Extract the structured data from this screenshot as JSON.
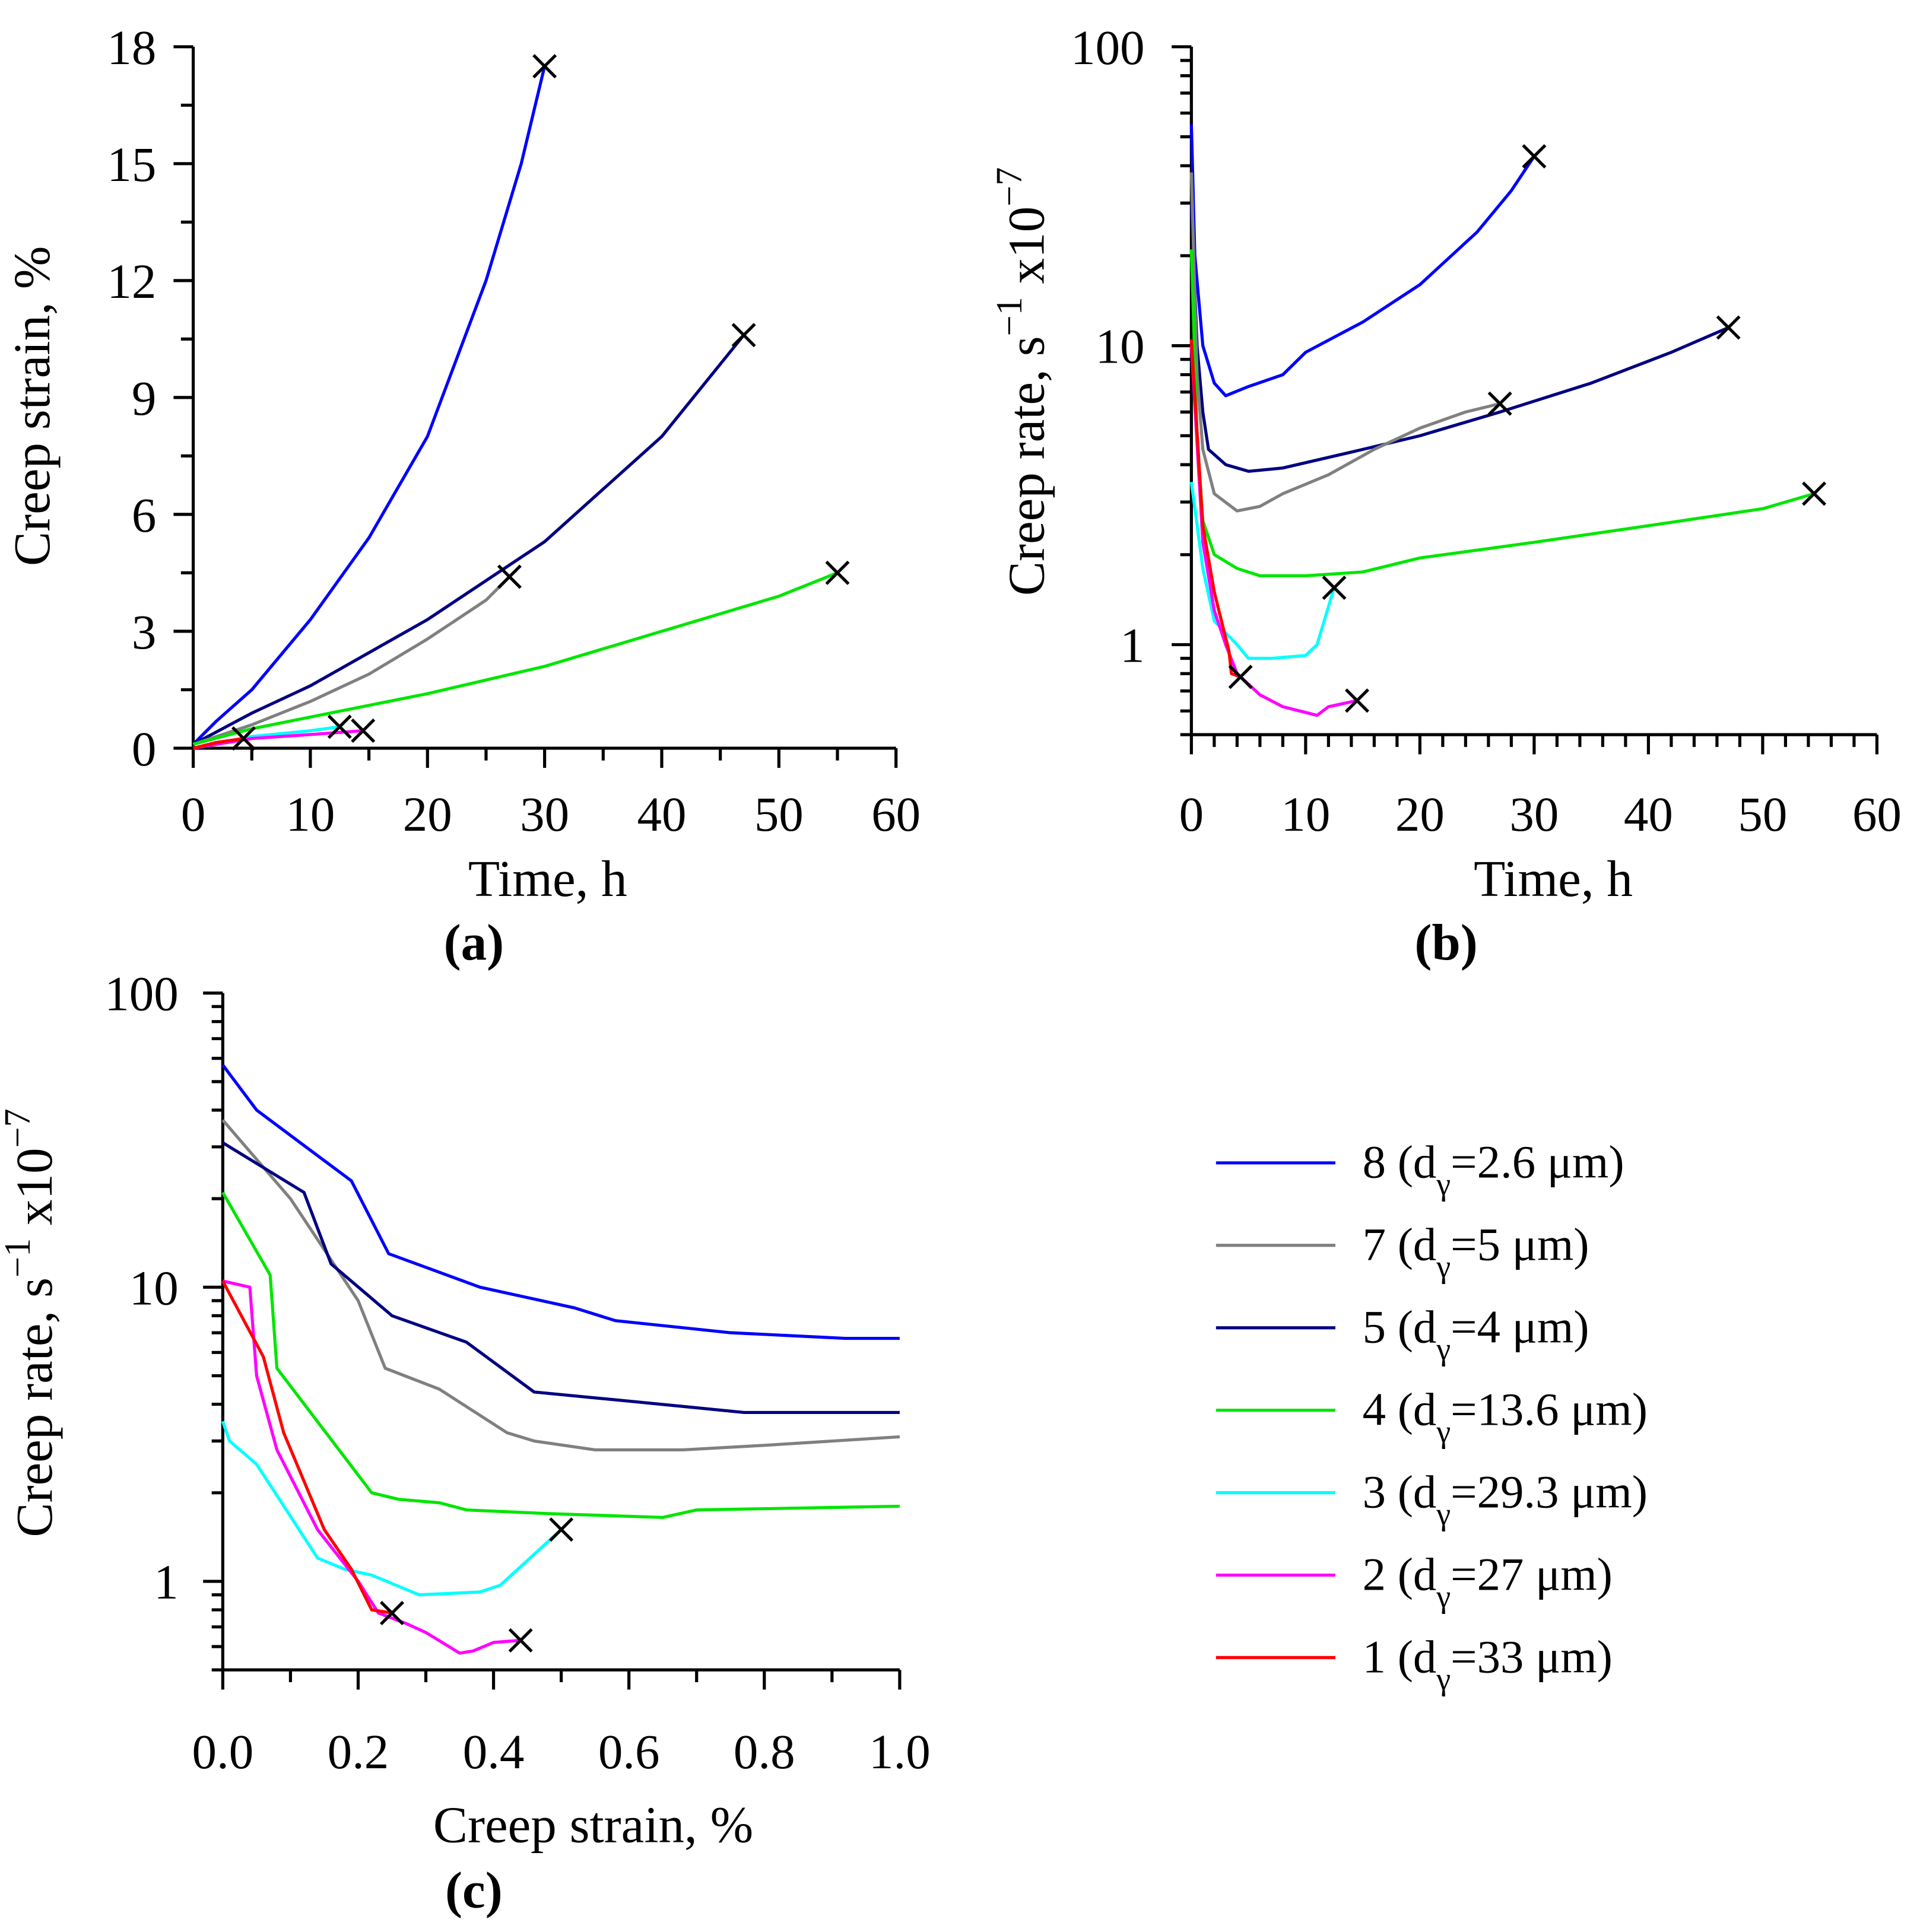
{
  "series_styles": [
    {
      "id": "8",
      "color": "#0000ff",
      "legend": {
        "prefix": "8 (d",
        "sub": "γ",
        "suffix": "=2.6 μm)"
      }
    },
    {
      "id": "7",
      "color": "#808080",
      "legend": {
        "prefix": "7 (d",
        "sub": "γ",
        "suffix": "=5 μm)"
      }
    },
    {
      "id": "5",
      "color": "#000080",
      "legend": {
        "prefix": "5 (d",
        "sub": "γ",
        "suffix": "=4 μm)"
      }
    },
    {
      "id": "4",
      "color": "#00e600",
      "legend": {
        "prefix": "4 (d",
        "sub": "γ",
        "suffix": "=13.6 μm)"
      }
    },
    {
      "id": "3",
      "color": "#00ffff",
      "legend": {
        "prefix": "3 (d",
        "sub": "γ",
        "suffix": "=29.3 μm)"
      }
    },
    {
      "id": "2",
      "color": "#ff00ff",
      "legend": {
        "prefix": "2 (d",
        "sub": "γ",
        "suffix": "=27 μm)"
      }
    },
    {
      "id": "1",
      "color": "#ff0000",
      "legend": {
        "prefix": "1 (d",
        "sub": "γ",
        "suffix": "=33 μm)"
      }
    }
  ],
  "chart_data": [
    {
      "panel": "(a)",
      "type": "line",
      "xlabel": "Time, h",
      "ylabel": "Creep strain, %",
      "xlim": [
        0,
        60
      ],
      "ylim": [
        0,
        18
      ],
      "yscale": "linear",
      "xticks": [
        "0",
        "10",
        "20",
        "30",
        "40",
        "50",
        "60"
      ],
      "yticks": [
        "0",
        "3",
        "6",
        "9",
        "12",
        "15",
        "18"
      ],
      "failure_marker": "×",
      "series": [
        {
          "id": "8",
          "points": [
            [
              0,
              0.1
            ],
            [
              2,
              0.7
            ],
            [
              5,
              1.5
            ],
            [
              10,
              3.3
            ],
            [
              15,
              5.4
            ],
            [
              20,
              8
            ],
            [
              25,
              12
            ],
            [
              28,
              15
            ],
            [
              30,
              17.5
            ]
          ]
        },
        {
          "id": "5",
          "points": [
            [
              0,
              0.1
            ],
            [
              5,
              0.9
            ],
            [
              10,
              1.6
            ],
            [
              20,
              3.3
            ],
            [
              30,
              5.3
            ],
            [
              40,
              8
            ],
            [
              47,
              10.6
            ]
          ]
        },
        {
          "id": "7",
          "points": [
            [
              0,
              0.1
            ],
            [
              5,
              0.6
            ],
            [
              10,
              1.2
            ],
            [
              15,
              1.9
            ],
            [
              20,
              2.8
            ],
            [
              25,
              3.8
            ],
            [
              27,
              4.4
            ]
          ]
        },
        {
          "id": "4",
          "points": [
            [
              0,
              0.1
            ],
            [
              5,
              0.5
            ],
            [
              10,
              0.8
            ],
            [
              20,
              1.4
            ],
            [
              30,
              2.1
            ],
            [
              40,
              3
            ],
            [
              50,
              3.9
            ],
            [
              55,
              4.5
            ]
          ]
        },
        {
          "id": "3",
          "points": [
            [
              0,
              0
            ],
            [
              5,
              0.3
            ],
            [
              10,
              0.45
            ],
            [
              12.5,
              0.55
            ]
          ]
        },
        {
          "id": "2",
          "points": [
            [
              0,
              0
            ],
            [
              5,
              0.25
            ],
            [
              10,
              0.35
            ],
            [
              14.5,
              0.45
            ]
          ]
        },
        {
          "id": "1",
          "points": [
            [
              0,
              0
            ],
            [
              2,
              0.15
            ],
            [
              4.3,
              0.25
            ]
          ]
        }
      ]
    },
    {
      "panel": "(b)",
      "type": "line",
      "xlabel": "Time, h",
      "ylabel": {
        "main": "Creep rate, s",
        "sup1": "−1",
        "mid": " x10",
        "sup2": "−7"
      },
      "xlim": [
        0,
        60
      ],
      "ylim": [
        0.5,
        100
      ],
      "yscale": "log",
      "xticks": [
        "0",
        "10",
        "20",
        "30",
        "40",
        "50",
        "60"
      ],
      "yticks": [
        "1",
        "10",
        "100"
      ],
      "failure_marker": "×",
      "series": [
        {
          "id": "8",
          "points": [
            [
              0,
              55
            ],
            [
              0.3,
              20
            ],
            [
              1,
              10
            ],
            [
              2,
              7.5
            ],
            [
              3,
              6.8
            ],
            [
              5,
              7.3
            ],
            [
              8,
              8
            ],
            [
              10,
              9.5
            ],
            [
              15,
              12
            ],
            [
              20,
              16
            ],
            [
              25,
              24
            ],
            [
              28,
              33
            ],
            [
              30,
              43
            ]
          ]
        },
        {
          "id": "5",
          "points": [
            [
              0,
              30
            ],
            [
              0.5,
              10
            ],
            [
              1,
              6
            ],
            [
              1.5,
              4.5
            ],
            [
              3,
              4
            ],
            [
              5,
              3.8
            ],
            [
              8,
              3.9
            ],
            [
              15,
              4.5
            ],
            [
              20,
              5
            ],
            [
              27,
              6
            ],
            [
              35,
              7.5
            ],
            [
              42,
              9.5
            ],
            [
              47,
              11.5
            ]
          ]
        },
        {
          "id": "7",
          "points": [
            [
              0,
              38
            ],
            [
              0.5,
              8
            ],
            [
              1,
              4.5
            ],
            [
              2,
              3.2
            ],
            [
              4,
              2.8
            ],
            [
              6,
              2.9
            ],
            [
              8,
              3.2
            ],
            [
              12,
              3.7
            ],
            [
              16,
              4.5
            ],
            [
              20,
              5.3
            ],
            [
              24,
              6
            ],
            [
              27,
              6.4
            ]
          ]
        },
        {
          "id": "4",
          "points": [
            [
              0,
              21
            ],
            [
              0.5,
              5
            ],
            [
              1,
              2.6
            ],
            [
              2,
              2
            ],
            [
              4,
              1.8
            ],
            [
              6,
              1.7
            ],
            [
              10,
              1.7
            ],
            [
              15,
              1.75
            ],
            [
              20,
              1.95
            ],
            [
              30,
              2.2
            ],
            [
              40,
              2.5
            ],
            [
              50,
              2.85
            ],
            [
              54.5,
              3.2
            ]
          ]
        },
        {
          "id": "3",
          "points": [
            [
              0,
              3.5
            ],
            [
              1,
              1.8
            ],
            [
              2,
              1.2
            ],
            [
              4,
              1
            ],
            [
              5,
              0.9
            ],
            [
              7,
              0.9
            ],
            [
              10,
              0.92
            ],
            [
              11,
              1.0
            ],
            [
              12.5,
              1.55
            ]
          ]
        },
        {
          "id": "2",
          "points": [
            [
              0,
              10
            ],
            [
              1,
              2.2
            ],
            [
              2,
              1.3
            ],
            [
              3,
              1
            ],
            [
              4,
              0.8
            ],
            [
              6,
              0.68
            ],
            [
              8,
              0.62
            ],
            [
              11,
              0.58
            ],
            [
              12,
              0.62
            ],
            [
              14.5,
              0.65
            ]
          ]
        },
        {
          "id": "1",
          "points": [
            [
              0,
              10.5
            ],
            [
              1,
              2.5
            ],
            [
              2,
              1.5
            ],
            [
              3.3,
              0.95
            ],
            [
              3.5,
              0.8
            ],
            [
              4.3,
              0.78
            ]
          ]
        }
      ]
    },
    {
      "panel": "(c)",
      "type": "line",
      "xlabel": "Creep strain, %",
      "ylabel": {
        "main": "Creep rate, s",
        "sup1": "−1",
        "mid": " x10",
        "sup2": "−7"
      },
      "xlim": [
        0,
        1
      ],
      "ylim": [
        0.5,
        100
      ],
      "yscale": "log",
      "xticks": [
        "0.0",
        "0.2",
        "0.4",
        "0.6",
        "0.8",
        "1.0"
      ],
      "yticks": [
        "1",
        "10",
        "100"
      ],
      "failure_marker": "×",
      "legend_position": "right",
      "series": [
        {
          "id": "8",
          "points": [
            [
              0,
              57
            ],
            [
              0.05,
              40
            ],
            [
              0.19,
              23
            ],
            [
              0.245,
              13
            ],
            [
              0.38,
              10
            ],
            [
              0.52,
              8.5
            ],
            [
              0.58,
              7.7
            ],
            [
              0.75,
              7
            ],
            [
              0.92,
              6.7
            ],
            [
              1,
              6.7
            ]
          ]
        },
        {
          "id": "7",
          "points": [
            [
              0,
              37
            ],
            [
              0.1,
              20
            ],
            [
              0.2,
              9
            ],
            [
              0.24,
              5.3
            ],
            [
              0.32,
              4.5
            ],
            [
              0.42,
              3.2
            ],
            [
              0.46,
              3
            ],
            [
              0.55,
              2.8
            ],
            [
              0.68,
              2.8
            ],
            [
              0.8,
              2.9
            ],
            [
              1,
              3.1
            ]
          ]
        },
        {
          "id": "5",
          "points": [
            [
              0,
              31
            ],
            [
              0.12,
              21
            ],
            [
              0.16,
              12
            ],
            [
              0.25,
              8
            ],
            [
              0.36,
              6.5
            ],
            [
              0.46,
              4.4
            ],
            [
              0.6,
              4.1
            ],
            [
              0.77,
              3.75
            ],
            [
              1,
              3.75
            ]
          ]
        },
        {
          "id": "4",
          "points": [
            [
              0,
              21
            ],
            [
              0.07,
              11
            ],
            [
              0.08,
              5.3
            ],
            [
              0.22,
              2
            ],
            [
              0.26,
              1.9
            ],
            [
              0.32,
              1.85
            ],
            [
              0.36,
              1.75
            ],
            [
              0.48,
              1.7
            ],
            [
              0.65,
              1.65
            ],
            [
              0.7,
              1.75
            ],
            [
              1,
              1.8
            ]
          ]
        },
        {
          "id": "3",
          "points": [
            [
              0,
              3.5
            ],
            [
              0.01,
              3
            ],
            [
              0.05,
              2.5
            ],
            [
              0.14,
              1.2
            ],
            [
              0.18,
              1.1
            ],
            [
              0.22,
              1.05
            ],
            [
              0.29,
              0.9
            ],
            [
              0.38,
              0.92
            ],
            [
              0.41,
              0.97
            ],
            [
              0.5,
              1.5
            ]
          ]
        },
        {
          "id": "2",
          "points": [
            [
              0,
              10.5
            ],
            [
              0.04,
              10
            ],
            [
              0.05,
              5
            ],
            [
              0.08,
              2.8
            ],
            [
              0.14,
              1.5
            ],
            [
              0.2,
              1
            ],
            [
              0.23,
              0.78
            ],
            [
              0.27,
              0.72
            ],
            [
              0.3,
              0.67
            ],
            [
              0.35,
              0.57
            ],
            [
              0.37,
              0.58
            ],
            [
              0.4,
              0.62
            ],
            [
              0.44,
              0.63
            ]
          ]
        },
        {
          "id": "1",
          "points": [
            [
              0,
              10.5
            ],
            [
              0.06,
              5.8
            ],
            [
              0.09,
              3.2
            ],
            [
              0.15,
              1.5
            ],
            [
              0.19,
              1.1
            ],
            [
              0.22,
              0.8
            ],
            [
              0.25,
              0.78
            ]
          ]
        }
      ],
      "failure_points": [
        [
          0.25,
          0.78
        ],
        [
          0.44,
          0.63
        ],
        [
          0.5,
          1.5
        ]
      ]
    }
  ]
}
